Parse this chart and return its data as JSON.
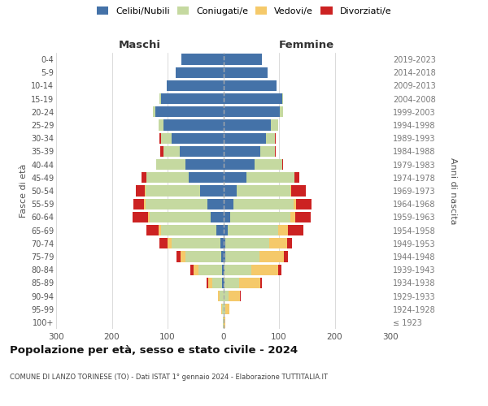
{
  "age_groups": [
    "100+",
    "95-99",
    "90-94",
    "85-89",
    "80-84",
    "75-79",
    "70-74",
    "65-69",
    "60-64",
    "55-59",
    "50-54",
    "45-49",
    "40-44",
    "35-39",
    "30-34",
    "25-29",
    "20-24",
    "15-19",
    "10-14",
    "5-9",
    "0-4"
  ],
  "birth_years": [
    "≤ 1923",
    "1924-1928",
    "1929-1933",
    "1934-1938",
    "1939-1943",
    "1944-1948",
    "1949-1953",
    "1954-1958",
    "1959-1963",
    "1964-1968",
    "1969-1973",
    "1974-1978",
    "1979-1983",
    "1984-1988",
    "1989-1993",
    "1994-1998",
    "1999-2003",
    "2004-2008",
    "2009-2013",
    "2014-2018",
    "2019-2023"
  ],
  "maschi": {
    "celibi": [
      0,
      0,
      0,
      2,
      2,
      3,
      5,
      12,
      22,
      28,
      42,
      62,
      68,
      78,
      92,
      108,
      122,
      112,
      102,
      85,
      75
    ],
    "coniugati": [
      1,
      2,
      6,
      18,
      42,
      65,
      88,
      100,
      110,
      112,
      98,
      76,
      52,
      30,
      20,
      8,
      4,
      2,
      0,
      0,
      0
    ],
    "vedovi": [
      0,
      1,
      4,
      7,
      10,
      8,
      7,
      4,
      3,
      2,
      1,
      0,
      0,
      0,
      0,
      0,
      0,
      0,
      0,
      0,
      0
    ],
    "divorziati": [
      0,
      0,
      0,
      3,
      5,
      8,
      15,
      22,
      28,
      20,
      16,
      8,
      0,
      5,
      3,
      0,
      0,
      0,
      0,
      0,
      0
    ]
  },
  "femmine": {
    "nubili": [
      0,
      0,
      0,
      2,
      2,
      3,
      4,
      8,
      12,
      18,
      24,
      42,
      56,
      66,
      76,
      86,
      102,
      106,
      96,
      80,
      70
    ],
    "coniugate": [
      1,
      3,
      10,
      26,
      48,
      62,
      78,
      90,
      108,
      108,
      96,
      86,
      50,
      26,
      16,
      12,
      6,
      2,
      0,
      0,
      0
    ],
    "vedove": [
      2,
      8,
      20,
      38,
      48,
      44,
      33,
      18,
      9,
      4,
      2,
      0,
      0,
      0,
      0,
      0,
      0,
      0,
      0,
      0,
      0
    ],
    "divorziate": [
      0,
      0,
      2,
      4,
      7,
      7,
      9,
      28,
      28,
      28,
      26,
      8,
      2,
      2,
      2,
      0,
      0,
      0,
      0,
      0,
      0
    ]
  },
  "colors": {
    "celibi": "#4472a8",
    "coniugati": "#c5d9a0",
    "vedovi": "#f5c96a",
    "divorziati": "#cc2222"
  },
  "xlim": 300,
  "title": "Popolazione per età, sesso e stato civile - 2024",
  "subtitle": "COMUNE DI LANZO TORINESE (TO) - Dati ISTAT 1° gennaio 2024 - Elaborazione TUTTITALIA.IT",
  "ylabel_left": "Fasce di età",
  "ylabel_right": "Anni di nascita",
  "header_maschi": "Maschi",
  "header_femmine": "Femmine",
  "legend_labels": [
    "Celibi/Nubili",
    "Coniugati/e",
    "Vedovi/e",
    "Divorziati/e"
  ],
  "bg_color": "#ffffff",
  "grid_color": "#cccccc"
}
